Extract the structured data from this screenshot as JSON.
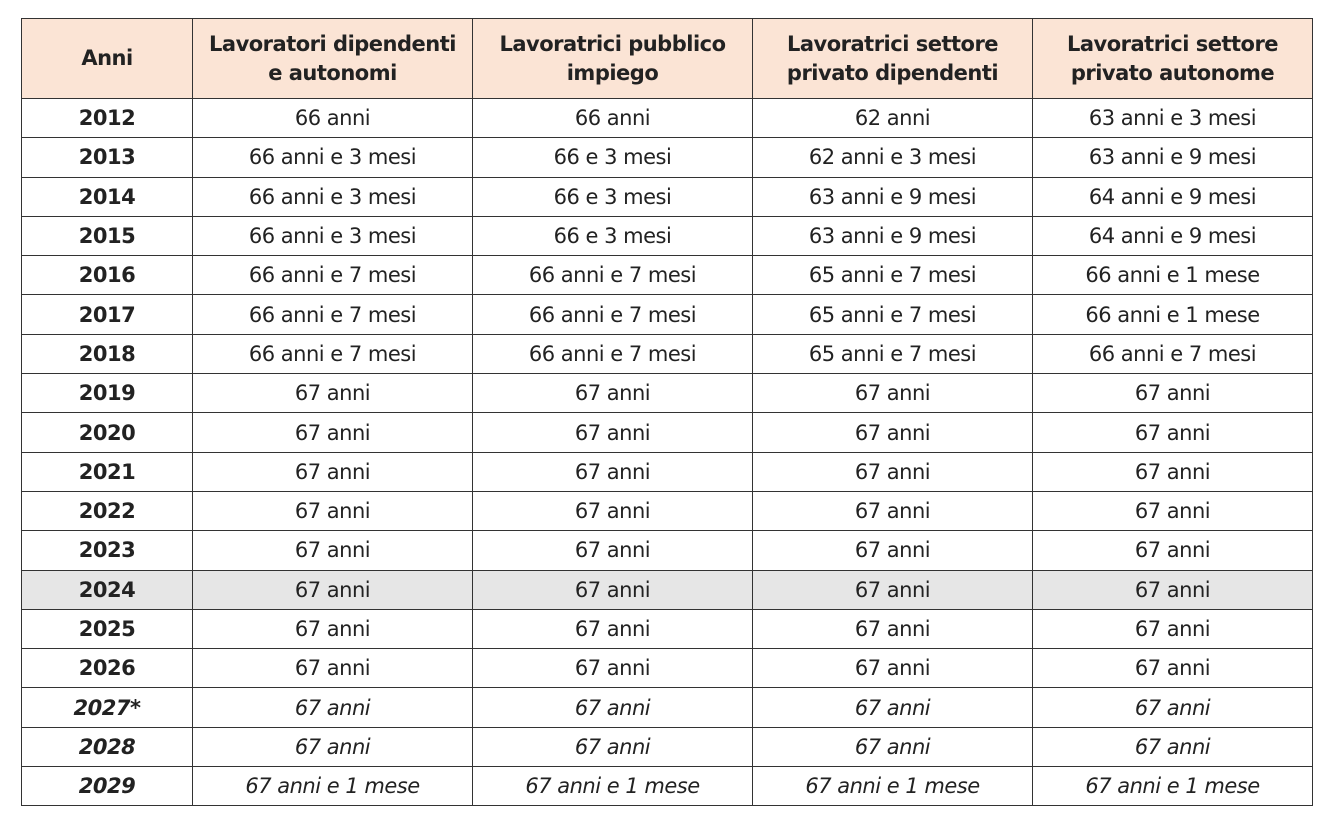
{
  "table": {
    "header": [
      "Anni",
      "Lavoratori dipendenti e autonomi",
      "Lavoratrici pubblico impiego",
      "Lavoratrici settore privato dipendenti",
      "Lavoratrici settore privato autonome"
    ],
    "rows": [
      [
        "2012",
        "66 anni",
        "66 anni",
        "62 anni",
        "63 anni e 3 mesi"
      ],
      [
        "2013",
        "66 anni e 3 mesi",
        "66 e 3 mesi",
        "62 anni e 3 mesi",
        "63 anni e 9 mesi"
      ],
      [
        "2014",
        "66 anni e 3 mesi",
        "66 e 3 mesi",
        "63 anni e 9 mesi",
        "64 anni e 9 mesi"
      ],
      [
        "2015",
        "66 anni e 3 mesi",
        "66 e 3 mesi",
        "63 anni e 9 mesi",
        "64 anni e 9 mesi"
      ],
      [
        "2016",
        "66 anni e 7 mesi",
        "66 anni e 7 mesi",
        "65 anni e 7 mesi",
        "66 anni e 1 mese"
      ],
      [
        "2017",
        "66 anni e 7 mesi",
        "66 anni e 7 mesi",
        "65 anni e 7 mesi",
        "66 anni e 1 mese"
      ],
      [
        "2018",
        "66 anni e 7 mesi",
        "66 anni e 7 mesi",
        "65 anni e 7 mesi",
        "66 anni e 7 mesi"
      ],
      [
        "2019",
        "67 anni",
        "67 anni",
        "67 anni",
        "67 anni"
      ],
      [
        "2020",
        "67 anni",
        "67 anni",
        "67 anni",
        "67 anni"
      ],
      [
        "2021",
        "67 anni",
        "67 anni",
        "67 anni",
        "67 anni"
      ],
      [
        "2022",
        "67 anni",
        "67 anni",
        "67 anni",
        "67 anni"
      ],
      [
        "2023",
        "67 anni",
        "67 anni",
        "67 anni",
        "67 anni"
      ],
      [
        "2024",
        "67 anni",
        "67 anni",
        "67 anni",
        "67 anni"
      ],
      [
        "2025",
        "67 anni",
        "67 anni",
        "67 anni",
        "67 anni"
      ],
      [
        "2026",
        "67 anni",
        "67 anni",
        "67 anni",
        "67 anni"
      ],
      [
        "2027*",
        "67 anni",
        "67 anni",
        "67 anni",
        "67 anni"
      ],
      [
        "2028",
        "67 anni",
        "67 anni",
        "67 anni",
        "67 anni"
      ],
      [
        "2029",
        "67 anni e 1 mese",
        "67 anni e 1 mese",
        "67 anni e 1 mese",
        "67 anni e 1 mese"
      ]
    ]
  }
}
